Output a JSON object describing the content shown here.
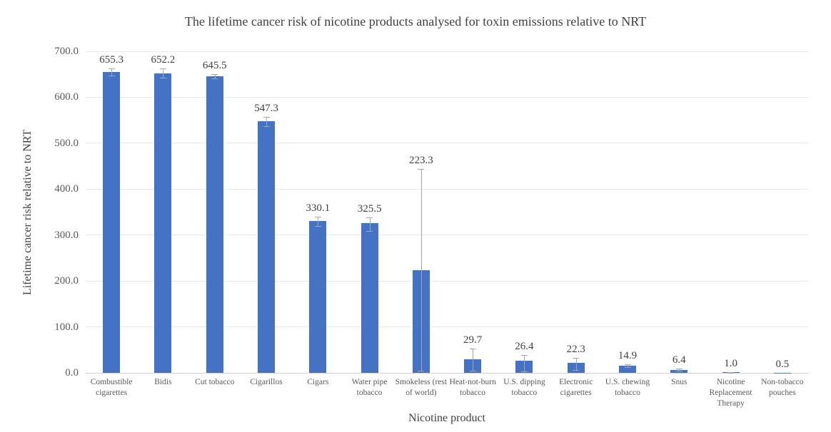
{
  "chart_data": {
    "type": "bar",
    "title": "The lifetime cancer risk of nicotine products analysed for toxin emissions relative to NRT",
    "xlabel": "Nicotine product",
    "ylabel": "Lifetime cancer risk relative to NRT",
    "ylim": [
      0,
      700
    ],
    "yticks": [
      0,
      100,
      200,
      300,
      400,
      500,
      600,
      700
    ],
    "ytick_labels": [
      "0.0",
      "100.0",
      "200.0",
      "300.0",
      "400.0",
      "500.0",
      "600.0",
      "700.0"
    ],
    "grid": true,
    "legend": false,
    "categories": [
      "Combustible cigarettes",
      "Bidis",
      "Cut tobacco",
      "Cigarillos",
      "Cigars",
      "Water pipe tobacco",
      "Smokeless (rest of world)",
      "Heat-not-burn tobacco",
      "U.S. dipping tobacco",
      "Electronic cigarettes",
      "U.S. chewing tobacco",
      "Snus",
      "Nicotine Replacement Therapy",
      "Non-tobacco pouches"
    ],
    "values": [
      655.3,
      652.2,
      645.5,
      547.3,
      330.1,
      325.5,
      223.3,
      29.7,
      26.4,
      22.3,
      14.9,
      6.4,
      1.0,
      0.5
    ],
    "data_labels": [
      "655.3",
      "652.2",
      "645.5",
      "547.3",
      "330.1",
      "325.5",
      "223.3",
      "29.7",
      "26.4",
      "22.3",
      "14.9",
      "6.4",
      "1.0",
      "0.5"
    ],
    "error_up": [
      8,
      10,
      5,
      10,
      10,
      13,
      220,
      23,
      13,
      11,
      3,
      2.5,
      0.8,
      0
    ],
    "error_down": [
      8,
      10,
      5,
      10,
      10,
      17,
      218,
      25,
      23,
      16,
      3,
      2.5,
      0.8,
      0
    ]
  },
  "colors": {
    "bar": "#4472C4",
    "error_bar": "#A6A6A6",
    "gridline": "#E9E9E9",
    "baseline": "#CFCFCF",
    "title_text": "#404040",
    "tick_text": "#595959"
  }
}
